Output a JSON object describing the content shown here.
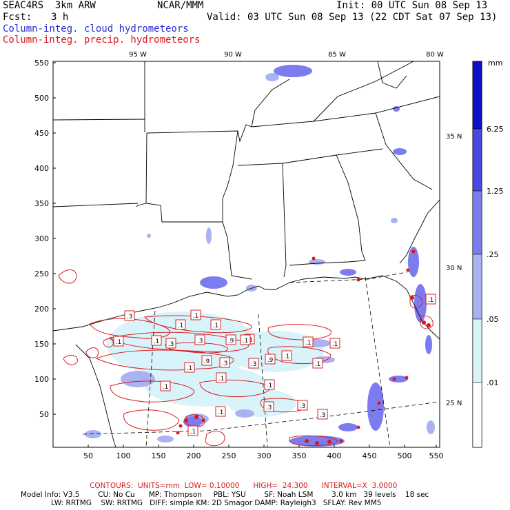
{
  "header": {
    "model": "SEAC4RS  3km ARW",
    "org": "NCAR/MMM",
    "init": "Init: 00 UTC Sun 08 Sep 13",
    "fcst_label": "Fcst:",
    "fcst_value": "3 h",
    "valid": "Valid: 03 UTC Sun 08 Sep 13 (22 CDT Sat 07 Sep 13)",
    "field_cloud": "Column-integ. cloud hydrometeors",
    "field_precip": "Column-integ. precip. hydrometeors"
  },
  "axes": {
    "x_ticks": [
      "50",
      "100",
      "150",
      "200",
      "250",
      "300",
      "350",
      "400",
      "450",
      "500",
      "550"
    ],
    "y_ticks": [
      "550",
      "500",
      "450",
      "400",
      "350",
      "300",
      "250",
      "200",
      "150",
      "100",
      "50"
    ],
    "lon_labels": [
      "95 W",
      "90 W",
      "85 W",
      "80 W"
    ],
    "lat_labels": [
      "35 N",
      "30 N",
      "25 N"
    ]
  },
  "colorbar": {
    "unit": "mm",
    "labels": [
      "6.25",
      "1.25",
      ".25",
      ".05",
      ".01"
    ],
    "colors": [
      "#1010c8",
      "#4848e0",
      "#7c7cf0",
      "#aab2f2",
      "#d8f4fa",
      "#ffffff"
    ]
  },
  "contour_labels": [
    ".3",
    ".1",
    ".1",
    ".1",
    ".1",
    ".1",
    ".3",
    ".3",
    ".9",
    ".3",
    ".1",
    ".1",
    ".1",
    ".1",
    ".1",
    ".9",
    ".3",
    ".3",
    ".9",
    ".1",
    ".1",
    ".1",
    ".3",
    ".3",
    ".1",
    ".3",
    ".1",
    ".1",
    ".1"
  ],
  "footer": {
    "contours": "CONTOURS:  UNITS=mm  LOW= 0.10000      HIGH=  24.300      INTERVAL=X  3.0000",
    "line1": "Model Info: V3.5        CU: No Cu      MP: Thompson     PBL: YSU        SF: Noah LSM        3.0 km   39 levels    18 sec",
    "line2": "LW: RRTMG    SW: RRTMG   DIFF: simple KM: 2D Smagor DAMP: Rayleigh3   SFLAY: Rev MM5"
  }
}
